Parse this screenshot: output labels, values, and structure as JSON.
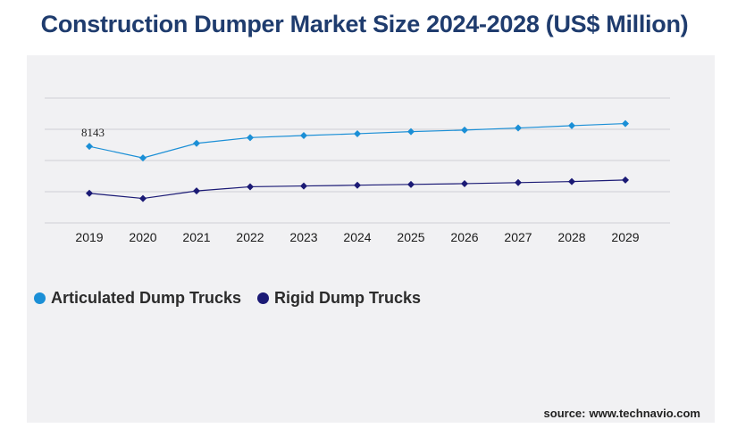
{
  "title": "Construction Dumper Market Size 2024-2028 (US$ Million)",
  "source_prefix": "source:",
  "source_site": "www.technavio.com",
  "chart_data": {
    "type": "line",
    "x": [
      "2019",
      "2020",
      "2021",
      "2022",
      "2023",
      "2024",
      "2025",
      "2026",
      "2027",
      "2028",
      "2029"
    ],
    "series": [
      {
        "name": "Articulated Dump Trucks",
        "color": "#1b8fd6",
        "values": [
          8143,
          7700,
          8260,
          8480,
          8560,
          8630,
          8710,
          8770,
          8850,
          8940,
          9020
        ]
      },
      {
        "name": "Rigid Dump Trucks",
        "color": "#1b1a75",
        "values": [
          6340,
          6140,
          6430,
          6590,
          6620,
          6650,
          6680,
          6710,
          6750,
          6790,
          6850
        ]
      }
    ],
    "annotations": [
      {
        "series": 0,
        "index": 0,
        "label": "8143"
      }
    ],
    "ylim": [
      5200,
      10000
    ],
    "y_gridlines": [
      5200,
      6200,
      7200,
      8200,
      9200,
      10200
    ],
    "grid": true,
    "legend_position": "bottom-left",
    "y_tick_labels_shown": false
  }
}
